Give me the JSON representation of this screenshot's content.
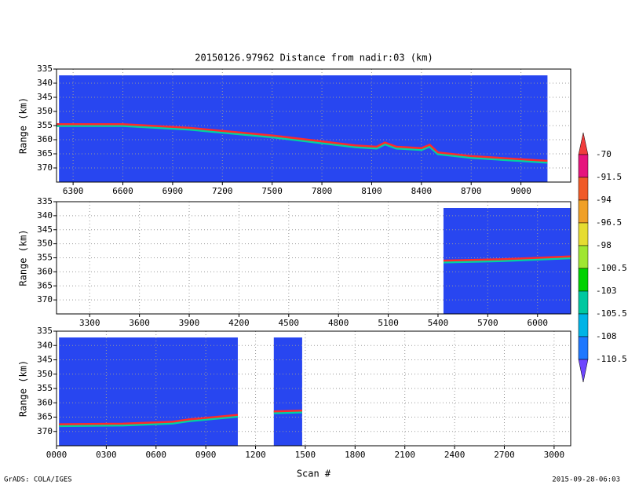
{
  "page": {
    "title": "20150126.97962    Distance from nadir:03 (km)",
    "footer_left": "GrADS: COLA/IGES",
    "footer_right": "2015-09-28-06:03",
    "swath_color": "#2846f0",
    "line_color": "#ff2a2a",
    "grid": true
  },
  "colorbar": {
    "levels": [
      -70,
      -91.5,
      -94,
      -96.5,
      -98,
      -100.5,
      -103,
      -105.5,
      -108,
      -110.5
    ],
    "colors": [
      "#f03c3c",
      "#e6147d",
      "#f05a28",
      "#f0a028",
      "#e6dc32",
      "#a0e632",
      "#00d200",
      "#00c8a0",
      "#00b4e6",
      "#1e78ff",
      "#6e46ff"
    ]
  },
  "chart_data": [
    {
      "type": "line",
      "ylabel": "Range (km)",
      "xlim": [
        6200,
        9300
      ],
      "ylim": [
        335,
        375
      ],
      "xticks": [
        6300,
        6600,
        6900,
        7200,
        7500,
        7800,
        8100,
        8400,
        8700,
        9000
      ],
      "yticks": [
        335,
        340,
        345,
        350,
        355,
        360,
        365,
        370
      ],
      "swaths": [
        [
          6215,
          9160
        ]
      ],
      "x": [
        6200,
        6600,
        7000,
        7500,
        8000,
        8130,
        8180,
        8250,
        8400,
        8450,
        8500,
        8700,
        9160
      ],
      "values": [
        354.5,
        354.5,
        355.8,
        358.5,
        362,
        362.5,
        361,
        362.5,
        363,
        361.8,
        364.5,
        365.8,
        367.5
      ]
    },
    {
      "type": "line",
      "ylabel": "Range (km)",
      "xlim": [
        3100,
        6200
      ],
      "ylim": [
        335,
        375
      ],
      "xticks": [
        3300,
        3600,
        3900,
        4200,
        4500,
        4800,
        5100,
        5400,
        5700,
        6000
      ],
      "yticks": [
        335,
        340,
        345,
        350,
        355,
        360,
        365,
        370
      ],
      "swaths": [
        [
          5433,
          6200
        ]
      ],
      "x": [
        5433,
        5800,
        6200
      ],
      "values": [
        356,
        355.5,
        354.5
      ]
    },
    {
      "type": "line",
      "ylabel": "Range (km)",
      "xlabel": "Scan #",
      "xlim": [
        0,
        3100
      ],
      "ylim": [
        335,
        375
      ],
      "xticks": [
        {
          "value": 0,
          "label": "0000"
        },
        {
          "value": 300,
          "label": "0300"
        },
        {
          "value": 600,
          "label": "0600"
        },
        {
          "value": 900,
          "label": "0900"
        },
        1200,
        1500,
        1800,
        2100,
        2400,
        2700,
        3000
      ],
      "yticks": [
        335,
        340,
        345,
        350,
        355,
        360,
        365,
        370
      ],
      "swaths": [
        [
          15,
          1093
        ],
        [
          1310,
          1481
        ]
      ],
      "x": [
        15,
        400,
        700,
        800,
        1093,
        1200,
        1310,
        1481
      ],
      "values": [
        367.5,
        367.3,
        366.6,
        365.8,
        364.2,
        null,
        363,
        362.7
      ]
    }
  ]
}
